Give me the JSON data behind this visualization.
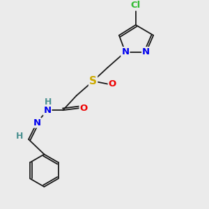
{
  "bg_color": "#ebebeb",
  "atom_colors": {
    "C": "#1a1a1a",
    "H": "#4a9090",
    "N": "#0000ee",
    "O": "#ee0000",
    "S": "#ccaa00",
    "Cl": "#33bb33"
  },
  "bond_color": "#1a1a1a",
  "bond_width": 1.3,
  "font_size": 9.5
}
